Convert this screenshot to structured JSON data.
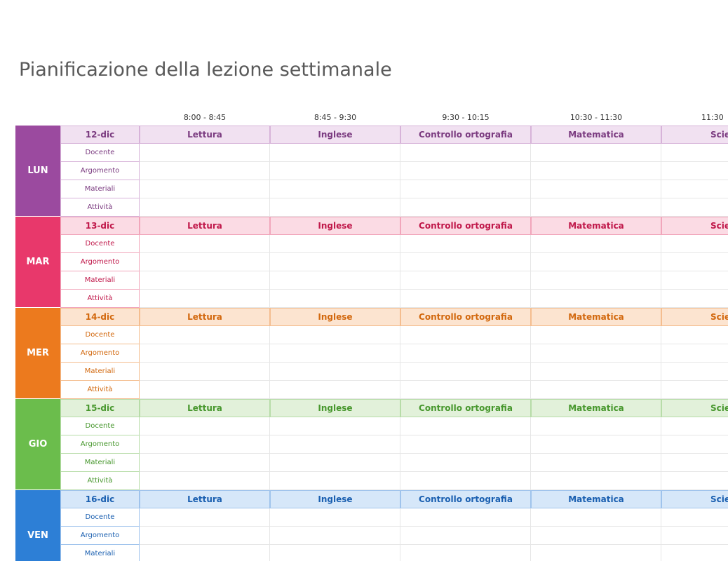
{
  "title": "Pianificazione della lezione settimanale",
  "times": [
    "8:00 - 8:45",
    "8:45 - 9:30",
    "9:30 - 10:15",
    "10:30 - 11:30",
    "11:30"
  ],
  "days": [
    {
      "name": "LUN",
      "date": "12-dic",
      "subjects": [
        "Lettura",
        "Inglese",
        "Controllo ortografia",
        "Matematica",
        "Scie"
      ],
      "rows": [
        "Docente",
        "Argomento",
        "Materiali",
        "Attività"
      ]
    },
    {
      "name": "MAR",
      "date": "13-dic",
      "subjects": [
        "Lettura",
        "Inglese",
        "Controllo ortografia",
        "Matematica",
        "Scie"
      ],
      "rows": [
        "Docente",
        "Argomento",
        "Materiali",
        "Attività"
      ]
    },
    {
      "name": "MER",
      "date": "14-dic",
      "subjects": [
        "Lettura",
        "Inglese",
        "Controllo ortografia",
        "Matematica",
        "Scie"
      ],
      "rows": [
        "Docente",
        "Argomento",
        "Materiali",
        "Attività"
      ]
    },
    {
      "name": "GIO",
      "date": "15-dic",
      "subjects": [
        "Lettura",
        "Inglese",
        "Controllo ortografia",
        "Matematica",
        "Scie"
      ],
      "rows": [
        "Docente",
        "Argomento",
        "Materiali",
        "Attività"
      ]
    },
    {
      "name": "VEN",
      "date": "16-dic",
      "subjects": [
        "Lettura",
        "Inglese",
        "Controllo ortografia",
        "Matematica",
        "Scie"
      ],
      "rows": [
        "Docente",
        "Argomento",
        "Materiali"
      ]
    }
  ]
}
